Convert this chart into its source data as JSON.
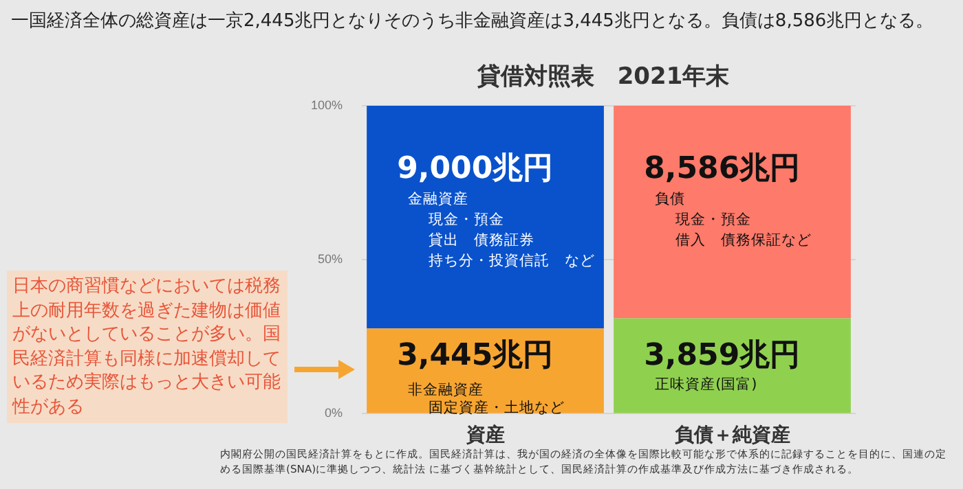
{
  "chart_data": {
    "type": "bar",
    "stacked": true,
    "title": "一国経済全体の総資産は一京2,445兆円となりそのうち非金融資産は3,445兆円となる。負債は8,586兆円となる。",
    "subtitle": "貸借対照表　2021年末",
    "categories": [
      "資産",
      "負債＋純資産"
    ],
    "series": [
      {
        "color": "#f7a531",
        "values": [
          27.7,
          null
        ]
      },
      {
        "color": "#0a52cc",
        "values": [
          72.3,
          null
        ]
      },
      {
        "color": "#8fd14f",
        "values": [
          null,
          31.0
        ]
      },
      {
        "color": "#fe7a6a",
        "values": [
          null,
          69.0
        ]
      }
    ],
    "ylim": [
      0,
      100
    ],
    "yticks": [
      {
        "value": 0,
        "label": "0%"
      },
      {
        "value": 50,
        "label": "50%"
      },
      {
        "value": 100,
        "label": "100%"
      }
    ],
    "grid": "y",
    "legend": false,
    "annotations": [
      "日本の商習慣などにおいては税務上の耐用年数を過ぎた建物は価値がないとしていることが多い。国民経済計算も同様に加速償却しているため実際はもっと大きい可能性がある",
      "内閣府公開の国民経済計算をもとに作成。国民経済計算は、我が国の経済の全体像を国際比較可能な形で体系的に記録することを目的に、国連の定める国際基準(SNA)に準拠しつつ、統計法 に基づく基幹統計として、国民経済計算の作成基準及び作成方法に基づき作成される。",
      "金融資産",
      "現金・預金",
      "貸出　債務証券",
      "持ち分・投資信託　など",
      "負債",
      "現金・預金",
      "借入　債務保証など",
      "非金融資産",
      "固定資産・土地など",
      "正味資産(国富)",
      "9,000兆円",
      "8,586兆円",
      "3,445兆円",
      "3,859兆円"
    ]
  }
}
